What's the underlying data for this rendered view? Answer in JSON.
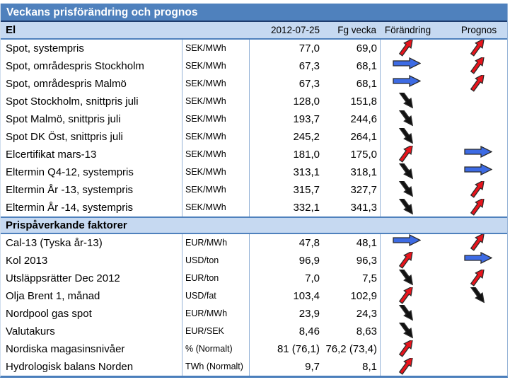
{
  "title": "Veckans prisförändring och prognos",
  "columns": {
    "date": "2012-07-25",
    "prev_week": "Fg vecka",
    "change": "Förändring",
    "forecast": "Prognos"
  },
  "sections": [
    {
      "label": "El",
      "rows": [
        {
          "name": "Spot, systempris",
          "unit": "SEK/MWh",
          "value": "77,0",
          "prev": "69,0",
          "change": "up",
          "forecast": "up"
        },
        {
          "name": "Spot, områdespris Stockholm",
          "unit": "SEK/MWh",
          "value": "67,3",
          "prev": "68,1",
          "change": "flat",
          "forecast": "up"
        },
        {
          "name": "Spot, områdespris Malmö",
          "unit": "SEK/MWh",
          "value": "67,3",
          "prev": "68,1",
          "change": "flat",
          "forecast": "up"
        },
        {
          "name": "Spot Stockholm, snittpris juli",
          "unit": "SEK/MWh",
          "value": "128,0",
          "prev": "151,8",
          "change": "down",
          "forecast": "none"
        },
        {
          "name": "Spot Malmö, snittpris juli",
          "unit": "SEK/MWh",
          "value": "193,7",
          "prev": "244,6",
          "change": "down",
          "forecast": "none"
        },
        {
          "name": "Spot DK Öst, snittpris juli",
          "unit": "SEK/MWh",
          "value": "245,2",
          "prev": "264,1",
          "change": "down",
          "forecast": "none"
        },
        {
          "name": "Elcertifikat mars-13",
          "unit": "SEK/MWh",
          "value": "181,0",
          "prev": "175,0",
          "change": "up",
          "forecast": "flat"
        },
        {
          "name": "Eltermin Q4-12, systempris",
          "unit": "SEK/MWh",
          "value": "313,1",
          "prev": "318,1",
          "change": "down",
          "forecast": "flat"
        },
        {
          "name": "Eltermin År -13, systempris",
          "unit": "SEK/MWh",
          "value": "315,7",
          "prev": "327,7",
          "change": "down",
          "forecast": "up"
        },
        {
          "name": "Eltermin År -14, systempris",
          "unit": "SEK/MWh",
          "value": "332,1",
          "prev": "341,3",
          "change": "down",
          "forecast": "up"
        }
      ]
    },
    {
      "label": "Prispåverkande faktorer",
      "rows": [
        {
          "name": "Cal-13 (Tyska år-13)",
          "unit": "EUR/MWh",
          "value": "47,8",
          "prev": "48,1",
          "change": "flat",
          "forecast": "up"
        },
        {
          "name": "Kol 2013",
          "unit": "USD/ton",
          "value": "96,9",
          "prev": "96,3",
          "change": "up",
          "forecast": "flat"
        },
        {
          "name": "Utsläppsrätter Dec 2012",
          "unit": "EUR/ton",
          "value": "7,0",
          "prev": "7,5",
          "change": "down",
          "forecast": "up"
        },
        {
          "name": "Olja Brent 1, månad",
          "unit": "USD/fat",
          "value": "103,4",
          "prev": "102,9",
          "change": "up",
          "forecast": "down"
        },
        {
          "name": "Nordpool gas spot",
          "unit": "EUR/MWh",
          "value": "23,9",
          "prev": "24,3",
          "change": "down",
          "forecast": "none"
        },
        {
          "name": "Valutakurs",
          "unit": "EUR/SEK",
          "value": "8,46",
          "prev": "8,63",
          "change": "down",
          "forecast": "none"
        },
        {
          "name": "Nordiska magasinsnivåer",
          "unit": "% (Normalt)",
          "value": "81 (76,1)",
          "prev": "76,2 (73,4)",
          "change": "up",
          "forecast": "none"
        },
        {
          "name": "Hydrologisk balans Norden",
          "unit": "TWh (Normalt)",
          "value": "9,7",
          "prev": "8,1",
          "change": "up",
          "forecast": "none"
        }
      ]
    }
  ],
  "colors": {
    "title_bg": "#4f81bd",
    "band_bg": "#c6d9f1",
    "grid_line": "#95b3d7",
    "arrow_up": "#e8141c",
    "arrow_down": "#111111",
    "arrow_flat": "#3d6be4",
    "arrow_outline": "#2b2b2b"
  }
}
